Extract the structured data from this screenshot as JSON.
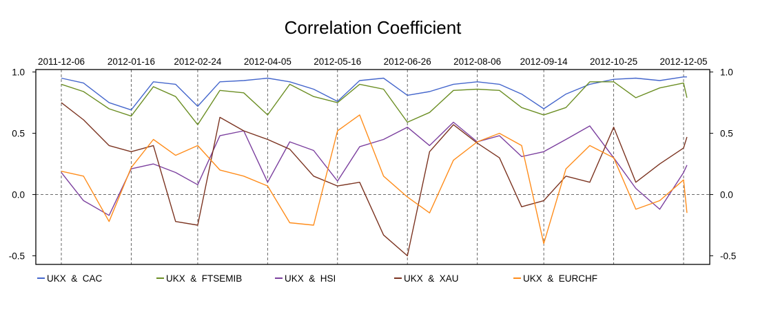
{
  "chart_data": {
    "type": "line",
    "title": "Correlation Coefficient",
    "xlabel": "",
    "ylabel": "",
    "x_tick_labels": [
      "2011-12-06",
      "2012-01-16",
      "2012-02-24",
      "2012-04-05",
      "2012-05-16",
      "2012-06-26",
      "2012-08-06",
      "2012-09-14",
      "2012-10-25",
      "2012-12-05"
    ],
    "y_ticks": [
      1.0,
      0.5,
      0.0,
      -0.5
    ],
    "y_tick_labels": [
      "1.0",
      "0.5",
      "0.0",
      "-0.5"
    ],
    "ylim": [
      -0.57,
      1.02
    ],
    "reference_line": 0.0,
    "grid": "vertical dashed lines at date ticks",
    "legend_position": "bottom",
    "x": [
      "2011-12-06",
      "2011-12-19",
      "2012-01-03",
      "2012-01-16",
      "2012-01-29",
      "2012-02-11",
      "2012-02-24",
      "2012-03-08",
      "2012-03-22",
      "2012-04-05",
      "2012-04-18",
      "2012-05-02",
      "2012-05-16",
      "2012-05-29",
      "2012-06-12",
      "2012-06-26",
      "2012-07-09",
      "2012-07-23",
      "2012-08-06",
      "2012-08-19",
      "2012-09-01",
      "2012-09-14",
      "2012-09-27",
      "2012-10-11",
      "2012-10-25",
      "2012-11-07",
      "2012-11-21",
      "2012-12-05",
      "2012-12-07"
    ],
    "series": [
      {
        "name": "UKX  &  CAC",
        "color": "#4466cc",
        "values": [
          0.95,
          0.91,
          0.75,
          0.69,
          0.92,
          0.9,
          0.72,
          0.92,
          0.93,
          0.95,
          0.92,
          0.86,
          0.76,
          0.93,
          0.95,
          0.81,
          0.84,
          0.9,
          0.92,
          0.9,
          0.82,
          0.7,
          0.82,
          0.9,
          0.94,
          0.95,
          0.93,
          0.96,
          0.96
        ]
      },
      {
        "name": "UKX  &  FTSEMIB",
        "color": "#6b8e23",
        "values": [
          0.9,
          0.84,
          0.7,
          0.64,
          0.88,
          0.8,
          0.57,
          0.85,
          0.83,
          0.65,
          0.9,
          0.8,
          0.75,
          0.9,
          0.86,
          0.59,
          0.67,
          0.85,
          0.86,
          0.85,
          0.71,
          0.65,
          0.71,
          0.92,
          0.92,
          0.79,
          0.87,
          0.91,
          0.79
        ]
      },
      {
        "name": "UKX  &  HSI",
        "color": "#7b3f9e",
        "values": [
          0.18,
          -0.05,
          -0.17,
          0.21,
          0.25,
          0.18,
          0.08,
          0.48,
          0.52,
          0.1,
          0.43,
          0.36,
          0.11,
          0.39,
          0.45,
          0.55,
          0.4,
          0.59,
          0.43,
          0.48,
          0.31,
          0.35,
          0.45,
          0.56,
          0.3,
          0.05,
          -0.12,
          0.18,
          0.24
        ]
      },
      {
        "name": "UKX  &  XAU",
        "color": "#7b3320",
        "values": [
          0.75,
          0.61,
          0.4,
          0.35,
          0.4,
          -0.22,
          -0.25,
          0.63,
          0.52,
          0.45,
          0.37,
          0.15,
          0.07,
          0.1,
          -0.33,
          -0.5,
          0.35,
          0.57,
          0.42,
          0.3,
          -0.1,
          -0.05,
          0.15,
          0.1,
          0.55,
          0.1,
          0.25,
          0.38,
          0.47
        ]
      },
      {
        "name": "UKX  &  EURCHF",
        "color": "#ff8c1a",
        "values": [
          0.19,
          0.15,
          -0.22,
          0.22,
          0.45,
          0.32,
          0.4,
          0.2,
          0.15,
          0.07,
          -0.23,
          -0.25,
          0.52,
          0.65,
          0.15,
          -0.02,
          -0.15,
          0.28,
          0.43,
          0.5,
          0.4,
          -0.4,
          0.21,
          0.4,
          0.3,
          -0.12,
          -0.05,
          0.12,
          -0.15
        ]
      }
    ]
  }
}
